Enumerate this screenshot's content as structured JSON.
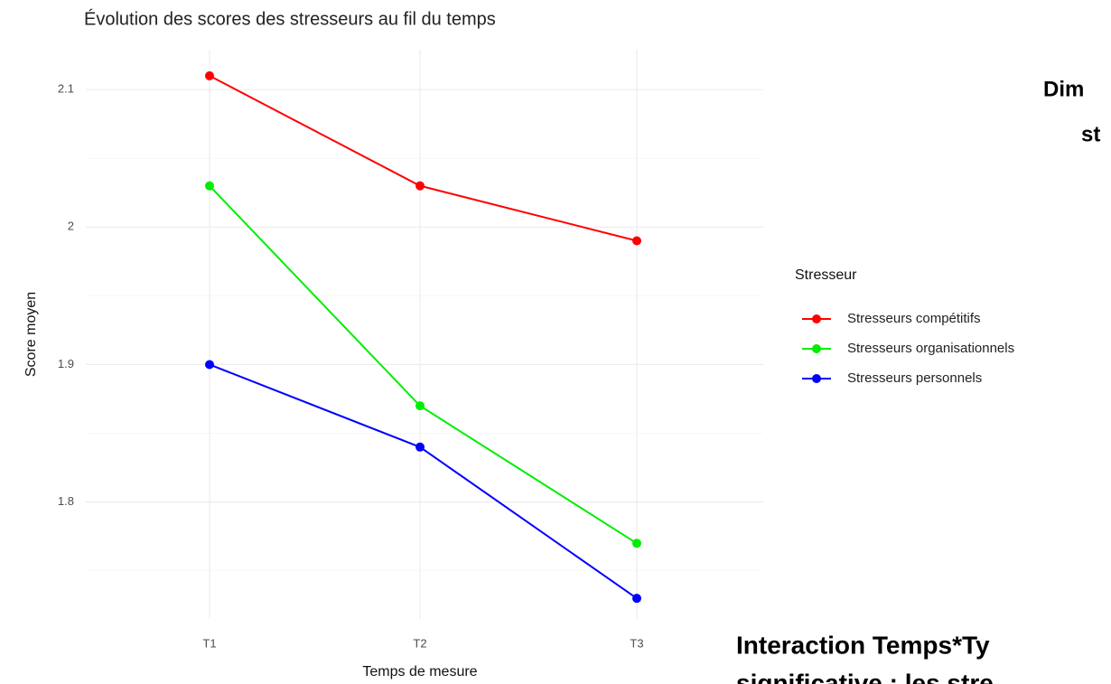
{
  "chart_data": {
    "type": "line",
    "title": "Évolution des scores des stresseurs au fil du temps",
    "x_label": "Temps de mesure",
    "y_label": "Score moyen",
    "categories": [
      "T1",
      "T2",
      "T3"
    ],
    "series": [
      {
        "name": "Stresseurs compétitifs",
        "color": "#ff0000",
        "values": [
          2.11,
          2.03,
          1.99
        ]
      },
      {
        "name": "Stresseurs organisationnels",
        "color": "#00ee00",
        "values": [
          2.03,
          1.87,
          1.77
        ]
      },
      {
        "name": "Stresseurs personnels",
        "color": "#0000ff",
        "values": [
          1.9,
          1.84,
          1.73
        ]
      }
    ],
    "ylim": [
      1.715,
      2.129
    ],
    "yticks": [
      1.8,
      1.9,
      2.0,
      2.1
    ],
    "grid": true,
    "legend_title": "Stresseur",
    "legend": "right"
  },
  "slide_text": {
    "heading_line_1": "Dim",
    "heading_line_2": "st",
    "note_line_1": "Interaction Temps*Ty",
    "note_line_2": "significative : les stre"
  }
}
